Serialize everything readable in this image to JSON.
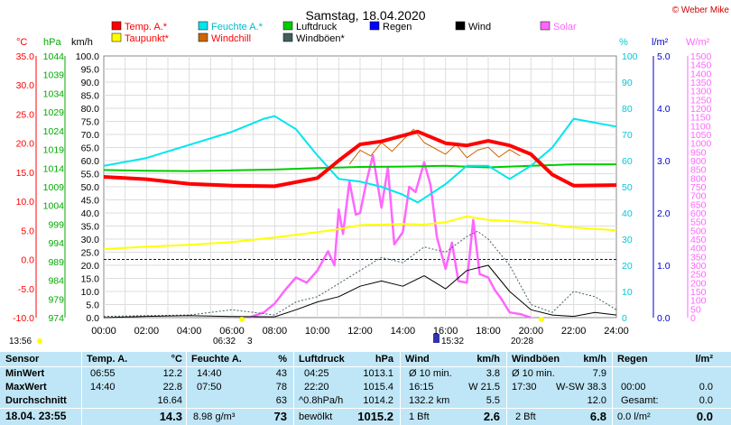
{
  "header": {
    "title": "Samstag, 18.04.2020",
    "credit": "© Weber Mike"
  },
  "chart_data": {
    "type": "line",
    "title": "Samstag, 18.04.2020",
    "x_ticks": [
      "00:00",
      "02:00",
      "04:00",
      "06:00",
      "08:00",
      "10:00",
      "12:00",
      "14:00",
      "16:00",
      "18:00",
      "20:00",
      "22:00",
      "24:00"
    ],
    "x_range_hours": [
      0,
      24
    ],
    "axes": {
      "temp_c": {
        "label": "°C",
        "range": [
          -10,
          35
        ],
        "ticks": [
          "35.0",
          "30.0",
          "25.0",
          "20.0",
          "15.0",
          "10.0",
          "5.0",
          "0.0",
          "-5.0",
          "-10.0"
        ]
      },
      "pressure_hpa": {
        "label": "hPa",
        "range": [
          974,
          1044
        ],
        "ticks": [
          "1044",
          "1039",
          "1034",
          "1029",
          "1024",
          "1019",
          "1014",
          "1009",
          "1004",
          "999",
          "994",
          "989",
          "984",
          "979",
          "974"
        ]
      },
      "wind_kmh": {
        "label": "km/h",
        "range": [
          0,
          100
        ],
        "ticks": [
          "100.0",
          "95.0",
          "90.0",
          "85.0",
          "80.0",
          "75.0",
          "70.0",
          "65.0",
          "60.0",
          "55.0",
          "50.0",
          "45.0",
          "40.0",
          "35.0",
          "30.0",
          "25.0",
          "20.0",
          "15.0",
          "10.0",
          "5.0",
          "0.0"
        ]
      },
      "humidity_pct": {
        "label": "%",
        "range": [
          0,
          100
        ],
        "ticks": [
          "100",
          "90",
          "80",
          "70",
          "60",
          "50",
          "40",
          "30",
          "20",
          "10",
          "0"
        ]
      },
      "rain_lm2": {
        "label": "l/m²",
        "range": [
          0,
          5
        ],
        "ticks": [
          "5.0",
          "4.0",
          "3.0",
          "2.0",
          "1.0",
          "0.0"
        ]
      },
      "solar_wm2": {
        "label": "W/m²",
        "range": [
          0,
          1500
        ],
        "ticks": [
          "1500",
          "1450",
          "1400",
          "1350",
          "1300",
          "1250",
          "1200",
          "1150",
          "1100",
          "1050",
          "1000",
          "950",
          "900",
          "850",
          "800",
          "750",
          "700",
          "650",
          "600",
          "550",
          "500",
          "450",
          "400",
          "350",
          "300",
          "250",
          "200",
          "150",
          "100",
          "50",
          "0"
        ]
      }
    },
    "legend": [
      {
        "name": "Temp. A.*",
        "color": "#ff0000"
      },
      {
        "name": "Feuchte A.*",
        "color": "#00e5ee"
      },
      {
        "name": "Luftdruck",
        "color": "#00cc00"
      },
      {
        "name": "Regen",
        "color": "#0000ff"
      },
      {
        "name": "Wind",
        "color": "#000000"
      },
      {
        "name": "Solar",
        "color": "#ff66ff"
      },
      {
        "name": "Taupunkt*",
        "color": "#ffff00"
      },
      {
        "name": "Windchill",
        "color": "#cc6600"
      },
      {
        "name": "Windböen*",
        "color": "#406060"
      }
    ],
    "series": [
      {
        "name": "Temp. A.*",
        "axis": "temp_c",
        "x": [
          0,
          2,
          4,
          6,
          8,
          10,
          11,
          12,
          13,
          14,
          14.7,
          16,
          17,
          18,
          19,
          20,
          21,
          22,
          24
        ],
        "y": [
          14.2,
          13.8,
          13,
          12.7,
          12.6,
          14,
          17,
          19.8,
          20.3,
          21.3,
          22,
          20,
          19.6,
          20.4,
          19.6,
          18.1,
          14.6,
          12.7,
          12.8
        ]
      },
      {
        "name": "Feuchte A.*",
        "axis": "humidity_pct",
        "x": [
          0,
          2,
          4,
          6,
          7.5,
          8,
          9,
          10,
          11,
          12,
          13,
          14,
          14.7,
          16,
          17,
          18,
          19,
          20,
          21,
          22,
          24
        ],
        "y": [
          58,
          61,
          66,
          71,
          76,
          77,
          72,
          62,
          53,
          52,
          50,
          47,
          44,
          51,
          58,
          58,
          53,
          58,
          65,
          76,
          73
        ]
      },
      {
        "name": "Luftdruck",
        "axis": "pressure_hpa",
        "x": [
          0,
          2,
          4,
          6,
          8,
          10,
          12,
          14,
          16,
          18,
          20,
          22,
          24
        ],
        "y": [
          1013.5,
          1013.3,
          1013.2,
          1013.4,
          1013.6,
          1014.0,
          1014.3,
          1014.4,
          1014.6,
          1014.2,
          1014.6,
          1015.0,
          1015.0
        ]
      },
      {
        "name": "Taupunkt*",
        "axis": "temp_c",
        "x": [
          0,
          2,
          4,
          6,
          8,
          10,
          11,
          12,
          13,
          14,
          15,
          16,
          17,
          18,
          19,
          20,
          22,
          24
        ],
        "y": [
          1.8,
          2.2,
          2.5,
          3.0,
          3.8,
          4.7,
          5.2,
          5.9,
          6.0,
          6.1,
          6.0,
          6.4,
          7.4,
          6.8,
          6.6,
          6.4,
          5.5,
          5.0
        ]
      },
      {
        "name": "Wind",
        "axis": "wind_kmh",
        "x": [
          0,
          2,
          4,
          6,
          8,
          9,
          10,
          11,
          12,
          13,
          14,
          15,
          16,
          17,
          18,
          19,
          20,
          21,
          22,
          23,
          24
        ],
        "y": [
          0,
          0.5,
          0.8,
          0.4,
          0.3,
          3,
          6,
          8,
          12,
          14,
          12,
          16,
          11,
          18,
          20,
          10,
          3,
          1,
          0.5,
          2,
          1
        ]
      },
      {
        "name": "Windchill",
        "axis": "temp_c",
        "x": [
          11.5,
          12,
          12.5,
          13,
          13.5,
          14,
          14.5,
          15,
          16,
          16.5,
          17,
          17.5,
          18,
          18.5,
          19,
          19.5
        ],
        "y": [
          16.4,
          18.8,
          17.8,
          20.1,
          18.6,
          20.5,
          22.4,
          20.1,
          18.1,
          19.8,
          17.5,
          18.8,
          19.3,
          17.6,
          18.9,
          17.8
        ]
      },
      {
        "name": "Windböen*",
        "axis": "wind_kmh",
        "x": [
          0,
          4,
          6,
          7,
          8,
          9,
          10,
          11,
          12,
          13,
          14,
          15,
          16,
          17,
          17.5,
          18,
          19,
          20,
          21,
          22,
          23,
          24
        ],
        "y": [
          0.5,
          1,
          3,
          2,
          1,
          6,
          8,
          13,
          18,
          23,
          21,
          27,
          25,
          31,
          33,
          30,
          20,
          5,
          2,
          10,
          8,
          3
        ]
      },
      {
        "name": "Solar",
        "axis": "solar_wm2",
        "x": [
          6.8,
          7.5,
          8,
          8.5,
          9,
          9.5,
          10,
          10.5,
          10.8,
          11,
          11.2,
          11.5,
          11.8,
          12,
          12.3,
          12.6,
          13,
          13.3,
          13.6,
          14,
          14.3,
          14.6,
          15,
          15.3,
          15.6,
          16,
          16.3,
          16.6,
          17,
          17.3,
          17.6,
          18,
          18.3,
          18.6,
          19,
          19.5,
          20
        ],
        "y": [
          0,
          30,
          80,
          160,
          230,
          200,
          270,
          380,
          300,
          620,
          480,
          780,
          590,
          600,
          780,
          930,
          630,
          860,
          420,
          490,
          750,
          720,
          890,
          760,
          460,
          280,
          430,
          210,
          200,
          560,
          250,
          230,
          160,
          110,
          30,
          20,
          0
        ]
      }
    ],
    "markers": {
      "sunrise": "06:32",
      "sunset": "20:28",
      "now_mark": "15:32",
      "moon_rise": "13:56",
      "sunrise_suffix": "3"
    },
    "grid": true
  },
  "table": {
    "headers": {
      "sensor": "Sensor",
      "temp": "Temp. A.",
      "temp_unit": "°C",
      "hum": "Feuchte A.",
      "hum_unit": "%",
      "press": "Luftdruck",
      "press_unit": "hPa",
      "wind": "Wind",
      "wind_unit": "km/h",
      "gust": "Windböen",
      "gust_unit": "km/h",
      "rain": "Regen",
      "rain_unit": "l/m²"
    },
    "rows": [
      {
        "label": "MinWert",
        "temp_time": "06:55",
        "temp_val": "12.2",
        "hum_time": "14:40",
        "hum_val": "43",
        "press_time": "04:25",
        "press_val": "1013.1",
        "wind_a": "Ø 10 min.",
        "wind_val": "3.8",
        "gust_a": "Ø 10 min.",
        "gust_val": "7.9",
        "rain_a": "",
        "rain_val": ""
      },
      {
        "label": "MaxWert",
        "temp_time": "14:40",
        "temp_val": "22.8",
        "hum_time": "07:50",
        "hum_val": "78",
        "press_time": "22:20",
        "press_val": "1015.4",
        "wind_a": "16:15",
        "wind_b": "W 21.5",
        "gust_a": "17:30",
        "gust_b": "W-SW 38.3",
        "rain_a": "00:00",
        "rain_val": "0.0"
      },
      {
        "label": "Durchschnitt",
        "temp_time": "",
        "temp_val": "16.64",
        "hum_time": "",
        "hum_val": "63",
        "press_time": "^0.8hPa/h",
        "press_val": "1014.2",
        "wind_a": "132.2 km",
        "wind_val": "5.5",
        "gust_a": "",
        "gust_val": "12.0",
        "rain_a": "Gesamt:",
        "rain_val": "0.0"
      },
      {
        "label": "18.04. 23:55",
        "temp_time": "",
        "temp_val": "14.3",
        "hum_time": "8.98 g/m³",
        "hum_val": "73",
        "press_time": "bewölkt",
        "press_val": "1015.2",
        "wind_a": "1 Bft",
        "wind_val": "2.6",
        "gust_a": "2 Bft",
        "gust_val": "6.8",
        "rain_a": "0.0 l/m²",
        "rain_val": "0.0"
      }
    ]
  }
}
